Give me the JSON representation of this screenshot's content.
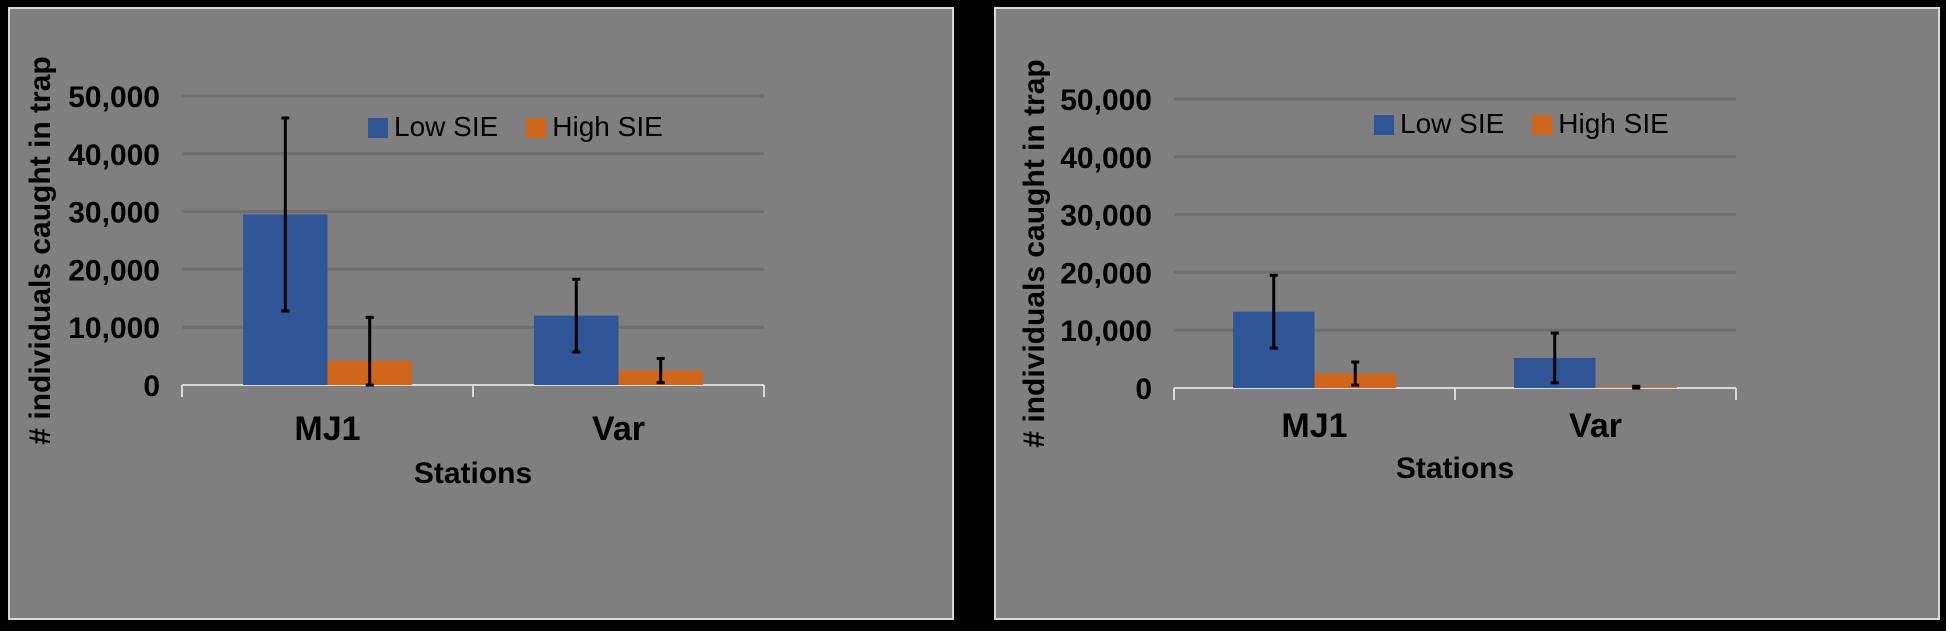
{
  "colors": {
    "background": "#000000",
    "panel": "#7f7f7f",
    "panel_border": "#d9d9d9",
    "gridline": "#6e6e6e",
    "axis_line": "#d9d9d9",
    "text": "#000000",
    "error_bar": "#000000",
    "low_sie": "#2f5597",
    "high_sie": "#d0661c"
  },
  "chart_data": [
    {
      "type": "bar",
      "title": "",
      "xlabel": "Stations",
      "ylabel": "# individuals caught in trap",
      "categories": [
        "MJ1",
        "Var"
      ],
      "ylim": [
        0,
        50000
      ],
      "yticks": [
        0,
        10000,
        20000,
        30000,
        40000,
        50000
      ],
      "ytick_labels": [
        "0",
        "10,000",
        "20,000",
        "30,000",
        "40,000",
        "50,000"
      ],
      "grid": true,
      "legend_position": "top-center",
      "series": [
        {
          "name": "Low SIE",
          "color": "#2f5597",
          "values": [
            29500,
            12000
          ],
          "error": [
            16700,
            6300
          ]
        },
        {
          "name": "High SIE",
          "color": "#d0661c",
          "values": [
            4200,
            2500
          ],
          "error": [
            7500,
            2100
          ]
        }
      ]
    },
    {
      "type": "bar",
      "title": "",
      "xlabel": "Stations",
      "ylabel": "# individuals caught in trap",
      "categories": [
        "MJ1",
        "Var"
      ],
      "ylim": [
        0,
        50000
      ],
      "yticks": [
        0,
        10000,
        20000,
        30000,
        40000,
        50000
      ],
      "ytick_labels": [
        "0",
        "10,000",
        "20,000",
        "30,000",
        "40,000",
        "50,000"
      ],
      "grid": true,
      "legend_position": "top-center",
      "series": [
        {
          "name": "Low SIE",
          "color": "#2f5597",
          "values": [
            13200,
            5200
          ],
          "error": [
            6300,
            4300
          ]
        },
        {
          "name": "High SIE",
          "color": "#d0661c",
          "values": [
            2500,
            150
          ],
          "error": [
            2000,
            150
          ]
        }
      ]
    }
  ]
}
